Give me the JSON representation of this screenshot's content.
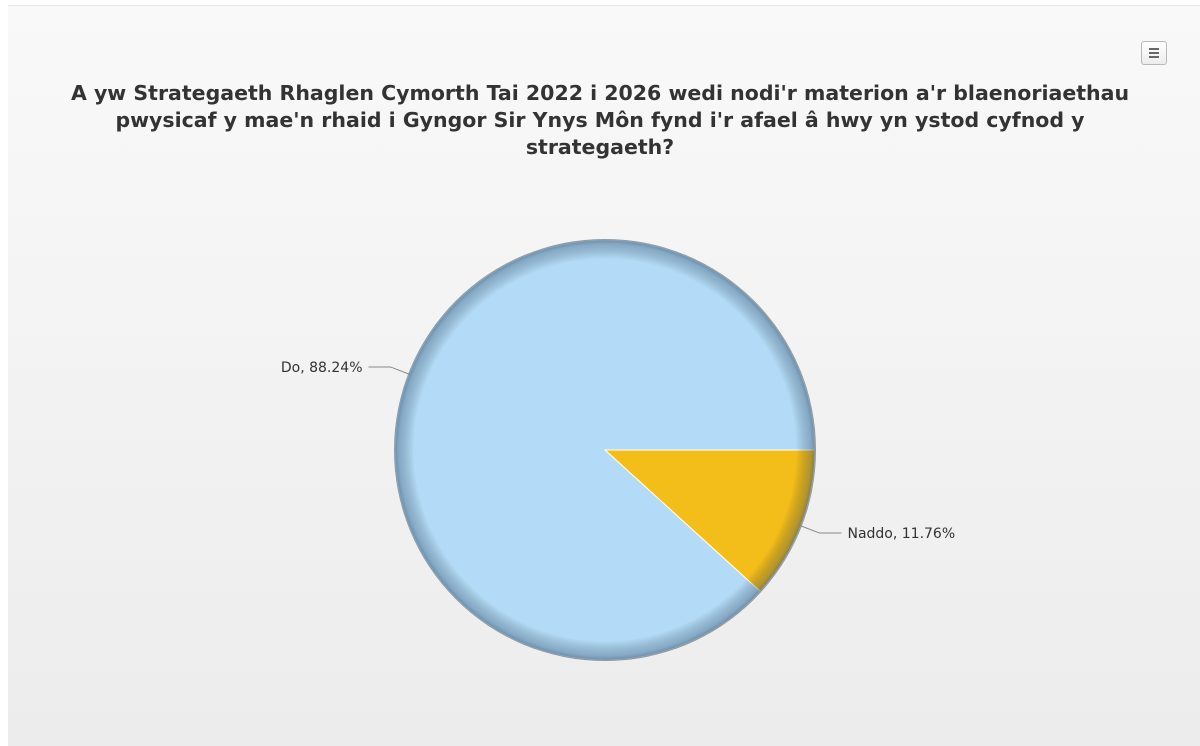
{
  "chart_data": {
    "type": "pie",
    "title": "A yw Strategaeth Rhaglen Cymorth Tai 2022 i 2026 wedi nodi'r materion a'r blaenoriaethau pwysicaf y mae'n rhaid i Gyngor Sir Ynys Môn fynd i'r afael â hwy yn ystod cyfnod y strategaeth?",
    "slices": [
      {
        "label": "Do",
        "value": 88.24,
        "color": "#b3dbf7"
      },
      {
        "label": "Naddo",
        "value": 11.76,
        "color": "#f4be1a"
      }
    ],
    "data_labels": [
      "Do, 88.24%",
      "Naddo, 11.76%"
    ],
    "legend": "none"
  },
  "toolbar": {
    "menu_icon": "hamburger-menu-icon"
  }
}
